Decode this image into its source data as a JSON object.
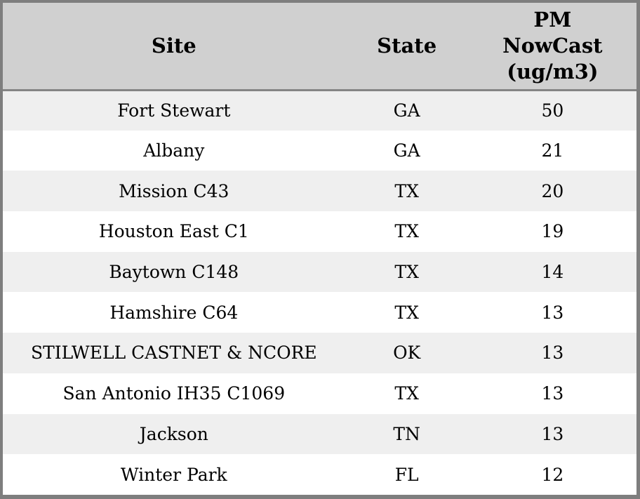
{
  "colors": {
    "header_bg": "#d0d0d0",
    "row_odd_bg": "#efefef",
    "row_even_bg": "#ffffff",
    "border": "#7e7e7e",
    "header_divider": "#858585",
    "text": "#000000"
  },
  "table": {
    "headers": {
      "site": "Site",
      "state": "State",
      "pm": "PM\nNowCast\n(ug/m3)"
    },
    "rows": [
      {
        "site": "Fort Stewart",
        "state": "GA",
        "pm": "50"
      },
      {
        "site": "Albany",
        "state": "GA",
        "pm": "21"
      },
      {
        "site": "Mission C43",
        "state": "TX",
        "pm": "20"
      },
      {
        "site": "Houston East C1",
        "state": "TX",
        "pm": "19"
      },
      {
        "site": "Baytown C148",
        "state": "TX",
        "pm": "14"
      },
      {
        "site": "Hamshire C64",
        "state": "TX",
        "pm": "13"
      },
      {
        "site": "STILWELL CASTNET & NCORE",
        "state": "OK",
        "pm": "13"
      },
      {
        "site": "San Antonio IH35 C1069",
        "state": "TX",
        "pm": "13"
      },
      {
        "site": "Jackson",
        "state": "TN",
        "pm": "13"
      },
      {
        "site": "Winter Park",
        "state": "FL",
        "pm": "12"
      }
    ]
  },
  "chart_data": {
    "type": "table",
    "columns": [
      "Site",
      "State",
      "PM NowCast (ug/m3)"
    ],
    "rows": [
      [
        "Fort Stewart",
        "GA",
        50
      ],
      [
        "Albany",
        "GA",
        21
      ],
      [
        "Mission C43",
        "TX",
        20
      ],
      [
        "Houston East C1",
        "TX",
        19
      ],
      [
        "Baytown C148",
        "TX",
        14
      ],
      [
        "Hamshire C64",
        "TX",
        13
      ],
      [
        "STILWELL CASTNET & NCORE",
        "OK",
        13
      ],
      [
        "San Antonio IH35 C1069",
        "TX",
        13
      ],
      [
        "Jackson",
        "TN",
        13
      ],
      [
        "Winter Park",
        "FL",
        12
      ]
    ]
  }
}
